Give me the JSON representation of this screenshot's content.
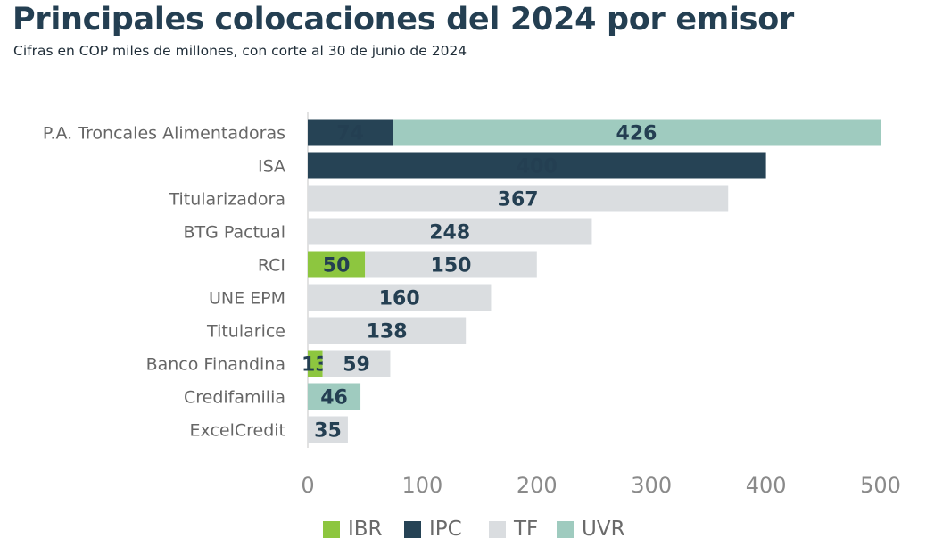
{
  "title": "Principales colocaciones del 2024 por emisor",
  "subtitle": "Cifras en COP miles de millones, con corte al 30 de junio de 2024",
  "colors": {
    "IBR": "#8dc63f",
    "IPC": "#264355",
    "TF": "#dadde0",
    "UVR": "#9fcbbf"
  },
  "chart_data": {
    "type": "bar",
    "orientation": "horizontal",
    "stacked": true,
    "categories": [
      "P.A. Troncales Alimentadoras",
      "ISA",
      "Titularizadora",
      "BTG Pactual",
      "RCI",
      "UNE EPM",
      "Titularice",
      "Banco Finandina",
      "Credifamilia",
      "ExcelCredit"
    ],
    "series": [
      {
        "name": "IBR",
        "values": [
          null,
          null,
          null,
          null,
          50,
          null,
          null,
          13,
          null,
          null
        ]
      },
      {
        "name": "IPC",
        "values": [
          74,
          400,
          null,
          null,
          null,
          null,
          null,
          null,
          null,
          null
        ]
      },
      {
        "name": "TF",
        "values": [
          null,
          null,
          367,
          248,
          150,
          160,
          138,
          59,
          null,
          35
        ]
      },
      {
        "name": "UVR",
        "values": [
          426,
          null,
          null,
          null,
          null,
          null,
          null,
          null,
          46,
          null
        ]
      }
    ],
    "xlim": [
      0,
      500
    ],
    "xticks": [
      0,
      100,
      200,
      300,
      400,
      500
    ],
    "grid": false,
    "legend_position": "bottom"
  }
}
